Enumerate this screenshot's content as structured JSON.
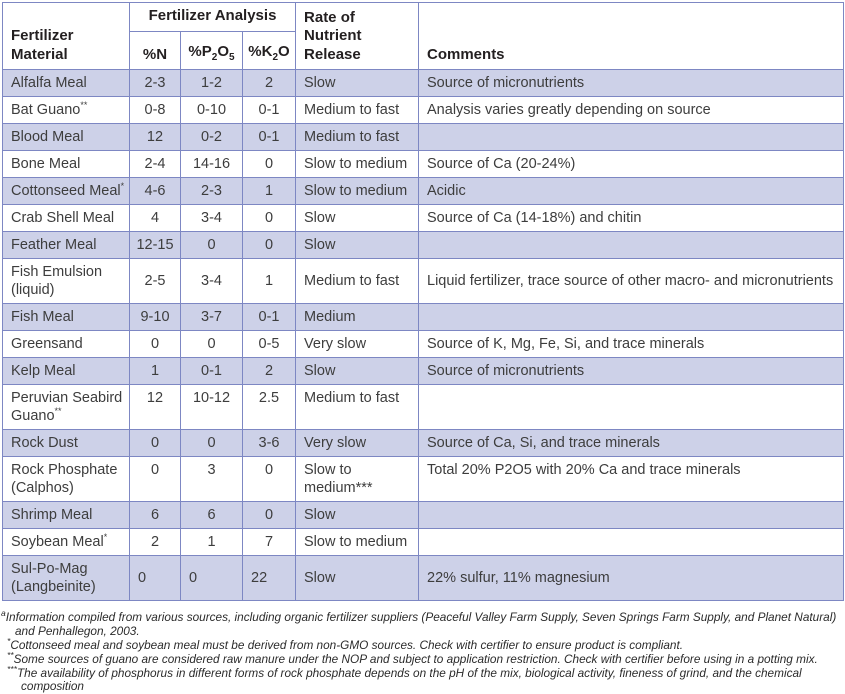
{
  "colors": {
    "row_stripe": "#cdd1e8",
    "table_border": "#7d87c3",
    "header_text": "#231f20",
    "body_text": "#3d3d3d"
  },
  "table": {
    "headers": {
      "material": "Fertilizer Material",
      "analysis_group": "Fertilizer Analysis",
      "n": "%N",
      "p_parts": [
        "%P",
        "2",
        "O",
        "5"
      ],
      "k_parts": [
        "%K",
        "2",
        "O"
      ],
      "rate": "Rate of Nutrient Release",
      "comments": "Comments"
    },
    "rows": [
      {
        "name": "Alfalfa Meal",
        "marker": "",
        "n": "2-3",
        "p": "1-2",
        "k": "2",
        "rate": "Slow",
        "comments": "Source of micronutrients"
      },
      {
        "name": "Bat Guano",
        "marker": "**",
        "n": "0-8",
        "p": "0-10",
        "k": "0-1",
        "rate": "Medium to fast",
        "comments": "Analysis varies greatly depending on source"
      },
      {
        "name": "Blood Meal",
        "marker": "",
        "n": "12",
        "p": "0-2",
        "k": "0-1",
        "rate": "Medium to fast",
        "comments": ""
      },
      {
        "name": "Bone Meal",
        "marker": "",
        "n": "2-4",
        "p": "14-16",
        "k": "0",
        "rate": "Slow to medium",
        "comments": "Source of Ca (20-24%)"
      },
      {
        "name": "Cottonseed Meal",
        "marker": "*",
        "n": "4-6",
        "p": "2-3",
        "k": "1",
        "rate": "Slow to medium",
        "comments": "Acidic"
      },
      {
        "name": "Crab Shell Meal",
        "marker": "",
        "n": "4",
        "p": "3-4",
        "k": "0",
        "rate": "Slow",
        "comments": "Source of Ca (14-18%) and chitin"
      },
      {
        "name": "Feather Meal",
        "marker": "",
        "n": "12-15",
        "p": "0",
        "k": "0",
        "rate": "Slow",
        "comments": ""
      },
      {
        "name": "Fish Emulsion (liquid)",
        "marker": "",
        "n": "2-5",
        "p": "3-4",
        "k": "1",
        "rate": "Medium to fast",
        "comments": "Liquid fertilizer, trace source of other macro- and micronutrients",
        "tall": true
      },
      {
        "name": "Fish Meal",
        "marker": "",
        "n": "9-10",
        "p": "3-7",
        "k": "0-1",
        "rate": "Medium",
        "comments": ""
      },
      {
        "name": "Greensand",
        "marker": "",
        "n": "0",
        "p": "0",
        "k": "0-5",
        "rate": "Very slow",
        "comments": "Source of K, Mg, Fe, Si, and trace minerals"
      },
      {
        "name": "Kelp Meal",
        "marker": "",
        "n": "1",
        "p": "0-1",
        "k": "2",
        "rate": "Slow",
        "comments": "Source of micronutrients"
      },
      {
        "name": "Peruvian Seabird Guano",
        "marker": "**",
        "n": "12",
        "p": "10-12",
        "k": "2.5",
        "rate": "Medium to fast",
        "comments": "",
        "tall": true,
        "valign": "top"
      },
      {
        "name": "Rock Dust",
        "marker": "",
        "n": "0",
        "p": "0",
        "k": "3-6",
        "rate": "Very slow",
        "comments": "Source of Ca, Si, and trace minerals"
      },
      {
        "name": "Rock Phosphate (Calphos)",
        "marker": "",
        "n": "0",
        "p": "3",
        "k": "0",
        "rate": "Slow to medium***",
        "comments": "Total 20% P2O5 with 20% Ca and trace minerals",
        "tall": true,
        "valign": "top"
      },
      {
        "name": "Shrimp Meal",
        "marker": "",
        "n": "6",
        "p": "6",
        "k": "0",
        "rate": "Slow",
        "comments": ""
      },
      {
        "name": "Soybean Meal",
        "marker": "*",
        "n": "2",
        "p": "1",
        "k": "7",
        "rate": "Slow to medium",
        "comments": ""
      },
      {
        "name": "Sul-Po-Mag (Langbeinite)",
        "marker": "",
        "n": "0",
        "p": "0",
        "k": "22",
        "rate": "Slow",
        "comments": "22% sulfur, 11% magnesium",
        "tall": true,
        "num_align": "left"
      }
    ]
  },
  "footnotes": [
    {
      "marker": "a",
      "text": "Information compiled from various sources, including organic fertilizer suppliers (Peaceful Valley Farm Supply, Seven Springs Farm Supply, and Planet Natural) and Penhallegon, 2003.",
      "indent": false
    },
    {
      "marker": "*",
      "text": "Cottonseed meal and soybean meal must be derived from non-GMO sources. Check with certifier to ensure product is compliant.",
      "indent": true
    },
    {
      "marker": "**",
      "text": "Some sources of guano are considered raw manure under the NOP and subject to application restriction. Check with certifier before using in a potting mix.",
      "indent": true
    },
    {
      "marker": "***",
      "text": "The availability of phosphorus in different forms of rock phosphate depends on the pH of the mix, biological activity, fineness of grind, and the chemical composition",
      "indent": true
    }
  ]
}
